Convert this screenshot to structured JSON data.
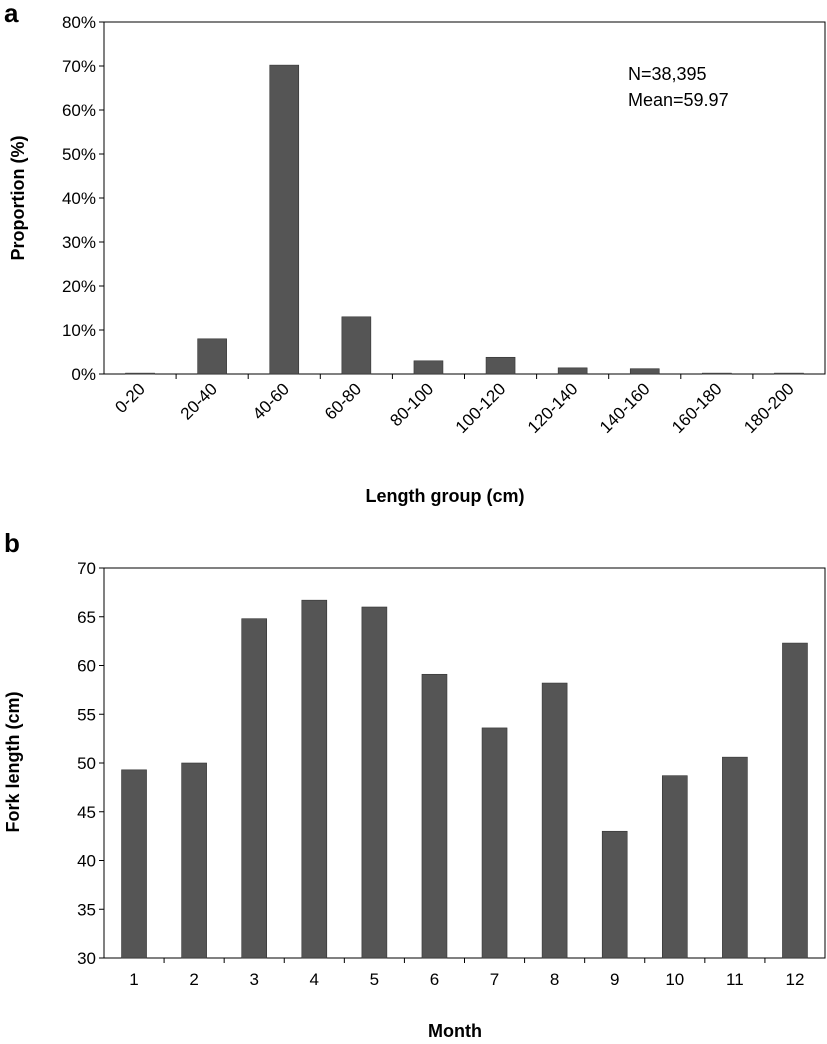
{
  "chart_data": [
    {
      "type": "bar",
      "panel_label": "a",
      "categories": [
        "0-20",
        "20-40",
        "40-60",
        "60-80",
        "80-100",
        "100-120",
        "120-140",
        "140-160",
        "160-180",
        "180-200"
      ],
      "values": [
        0.2,
        8,
        70.2,
        13,
        3,
        3.8,
        1.4,
        1.2,
        0.2,
        0.2
      ],
      "xlabel": "Length group (cm)",
      "ylabel": "Proportion (%)",
      "ylim": [
        0,
        80
      ],
      "yticks": [
        "0%",
        "10%",
        "20%",
        "30%",
        "40%",
        "50%",
        "60%",
        "70%",
        "80%"
      ],
      "annotations": [
        "N=38,395",
        "Mean=59.97"
      ],
      "bar_color": "#555555",
      "grid": false
    },
    {
      "type": "bar",
      "panel_label": "b",
      "categories": [
        "1",
        "2",
        "3",
        "4",
        "5",
        "6",
        "7",
        "8",
        "9",
        "10",
        "11",
        "12"
      ],
      "values": [
        49.3,
        50,
        64.8,
        66.7,
        66,
        59.1,
        53.6,
        58.2,
        43,
        48.7,
        50.6,
        62.3
      ],
      "xlabel": "Month",
      "ylabel": "Fork length (cm)",
      "ylim": [
        30,
        70
      ],
      "yticks": [
        "30",
        "35",
        "40",
        "45",
        "50",
        "55",
        "60",
        "65",
        "70"
      ],
      "bar_color": "#555555",
      "grid": false
    }
  ]
}
